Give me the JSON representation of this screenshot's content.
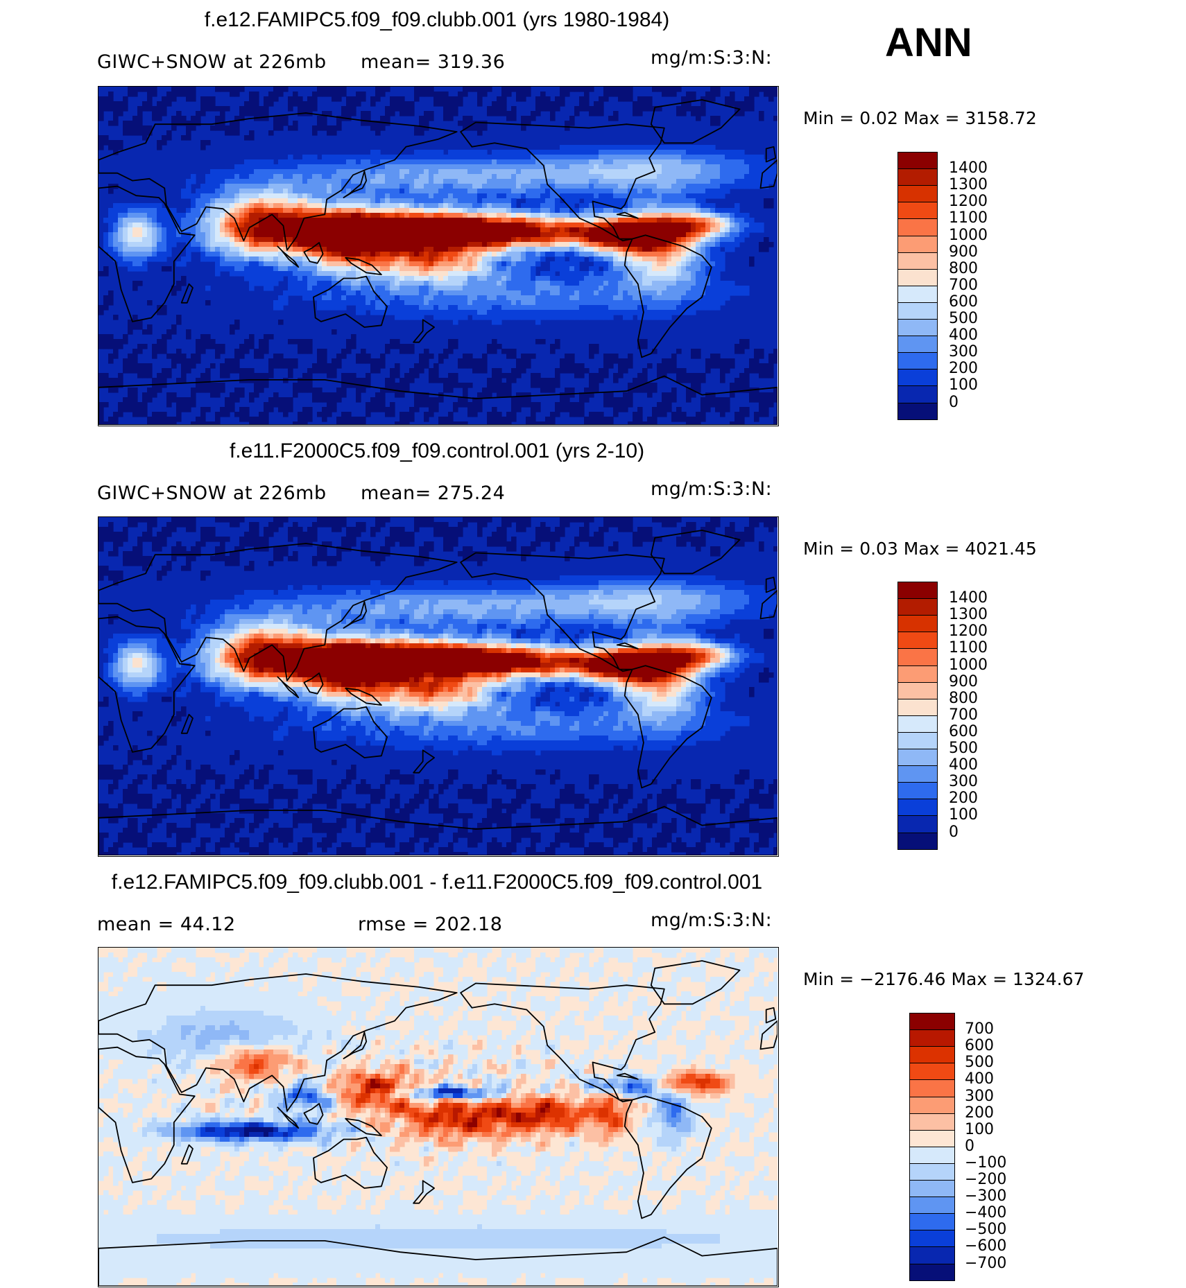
{
  "season": "ANN",
  "panels": [
    {
      "title": "f.e12.FAMIPC5.f09_f09.clubb.001 (yrs 1980-1984)",
      "left_text": "GIWC+SNOW at 226mb",
      "center_text": "mean= 319.36",
      "units": "mg/m:S:3:N:",
      "minmax": "Min =    0.02  Max  =  3158.72",
      "levels": [
        "1400",
        "1300",
        "1200",
        "1100",
        "1000",
        "900",
        "800",
        "700",
        "600",
        "500",
        "400",
        "300",
        "200",
        "100",
        "0"
      ],
      "colors": [
        "#8b0000",
        "#b31c00",
        "#d73200",
        "#f04a14",
        "#fa7446",
        "#fc9c74",
        "#fcc0a4",
        "#fbe2cf",
        "#d6e9fb",
        "#b5d4fa",
        "#8fb8f6",
        "#5f95f2",
        "#2e6bee",
        "#0a3fd9",
        "#0827b0",
        "#060f78"
      ],
      "field": "abs",
      "bg": "#0827b0"
    },
    {
      "title": "f.e11.F2000C5.f09_f09.control.001 (yrs 2-10)",
      "left_text": "GIWC+SNOW at 226mb",
      "center_text": "mean= 275.24",
      "units": "mg/m:S:3:N:",
      "minmax": "Min =    0.03  Max  =  4021.45",
      "levels": [
        "1400",
        "1300",
        "1200",
        "1100",
        "1000",
        "900",
        "800",
        "700",
        "600",
        "500",
        "400",
        "300",
        "200",
        "100",
        "0"
      ],
      "colors": [
        "#8b0000",
        "#b31c00",
        "#d73200",
        "#f04a14",
        "#fa7446",
        "#fc9c74",
        "#fcc0a4",
        "#fbe2cf",
        "#d6e9fb",
        "#b5d4fa",
        "#8fb8f6",
        "#5f95f2",
        "#2e6bee",
        "#0a3fd9",
        "#0827b0",
        "#060f78"
      ],
      "field": "abs2",
      "bg": "#0827b0"
    },
    {
      "title": "f.e12.FAMIPC5.f09_f09.clubb.001 - f.e11.F2000C5.f09_f09.control.001",
      "left_text": "mean =    44.12",
      "center_text": "rmse  =  202.18",
      "units": "mg/m:S:3:N:",
      "minmax": "Min  =  −2176.46  Max  =  1324.67",
      "levels": [
        "700",
        "600",
        "500",
        "400",
        "300",
        "200",
        "100",
        "0",
        "−100",
        "−200",
        "−300",
        "−400",
        "−500",
        "−600",
        "−700"
      ],
      "colors": [
        "#8b0000",
        "#b81800",
        "#dc3200",
        "#f04a14",
        "#fa7446",
        "#fc9c74",
        "#fcc0a4",
        "#fde6d4",
        "#d6e9fb",
        "#b5d4fa",
        "#8fb8f6",
        "#5f95f2",
        "#2e6bee",
        "#0a3fd9",
        "#0827b0",
        "#060f78"
      ],
      "field": "diff",
      "bg": "#fde6d4"
    }
  ]
}
